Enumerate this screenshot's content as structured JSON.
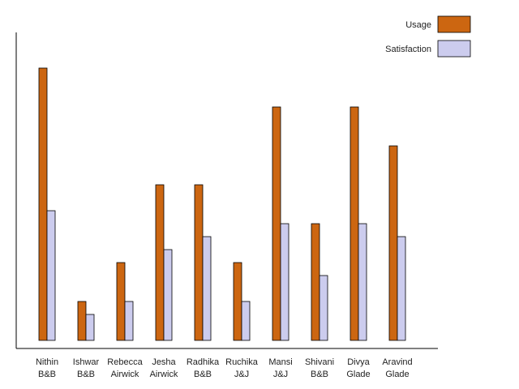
{
  "chart_data": {
    "type": "bar",
    "title": "",
    "xlabel": "",
    "ylabel": "",
    "ylim": [
      0,
      24
    ],
    "grid": false,
    "legend_position": "top-right",
    "categories": [
      [
        "Nithin",
        "B&B"
      ],
      [
        "Ishwar",
        "B&B"
      ],
      [
        "Rebecca",
        "Airwick"
      ],
      [
        "Jesha",
        "Airwick"
      ],
      [
        "Radhika",
        "B&B"
      ],
      [
        "Ruchika",
        "J&J"
      ],
      [
        "Mansi",
        "J&J"
      ],
      [
        "Shivani",
        "B&B"
      ],
      [
        "Divya",
        "Glade"
      ],
      [
        "Aravind",
        "Glade"
      ]
    ],
    "series": [
      {
        "name": "Usage",
        "color": "#cc6611",
        "values": [
          21,
          3,
          6,
          12,
          12,
          6,
          18,
          9,
          18,
          15
        ]
      },
      {
        "name": "Satisfaction",
        "color": "#ccccee",
        "values": [
          10,
          2,
          3,
          7,
          8,
          3,
          9,
          5,
          9,
          8
        ]
      }
    ]
  }
}
